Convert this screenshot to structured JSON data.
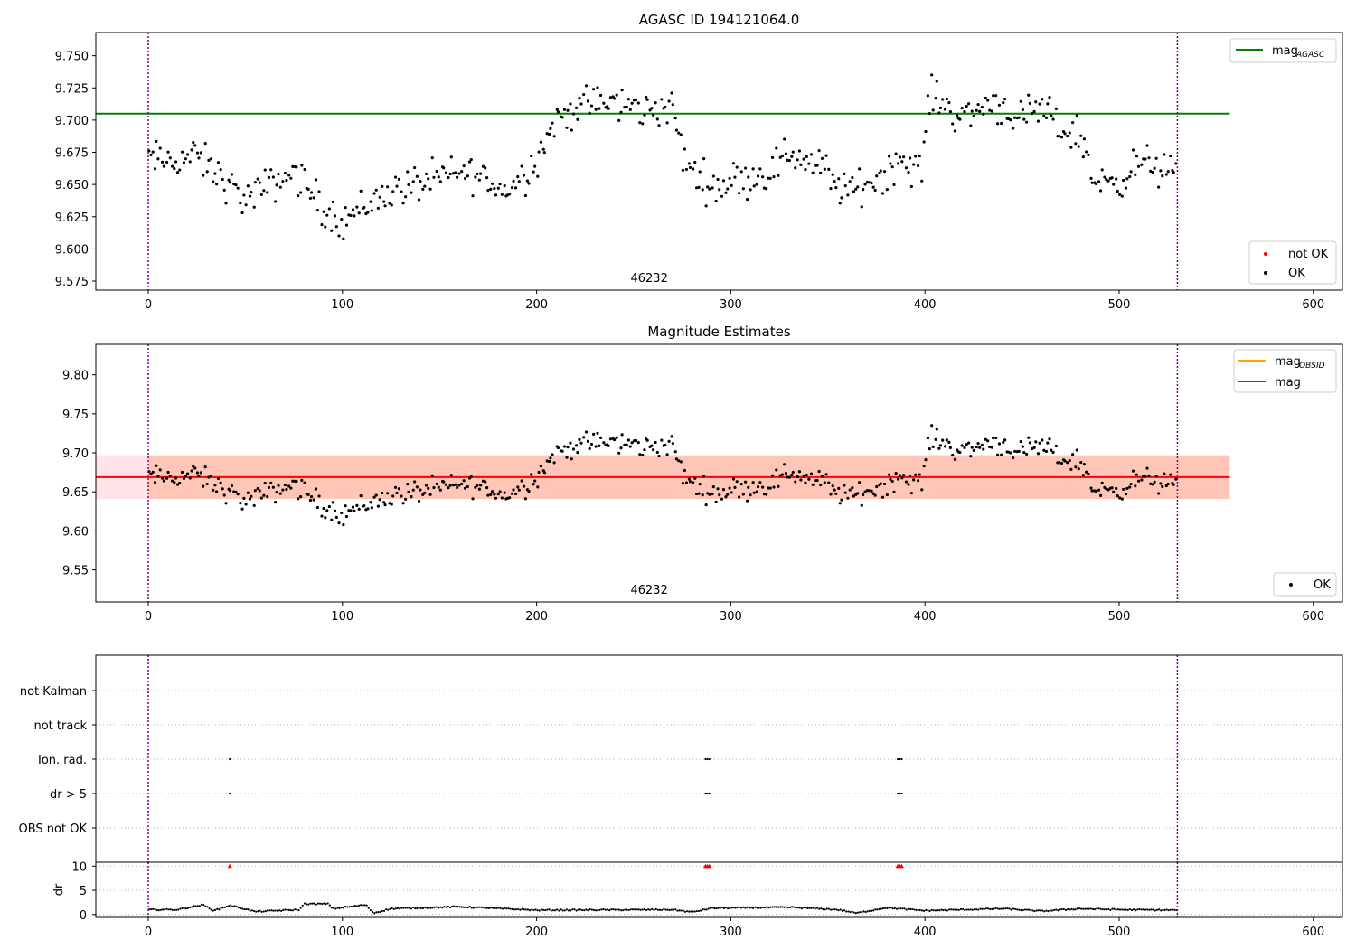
{
  "colors": {
    "ok": "#000000",
    "not_ok": "#ff0000",
    "mag_agasc": "#008000",
    "mag_obsid": "#ffa500",
    "mag": "#ff0000",
    "obs_boundary": "#800080",
    "band_outer": "#ffc0cb",
    "band_inner": "#ffa07a",
    "grid": "#b0b0b0"
  },
  "chart_data": [
    {
      "type": "scatter",
      "title": "AGASC ID 194121064.0",
      "xlim": [
        -27,
        615
      ],
      "ylim": [
        9.568,
        9.768
      ],
      "xticks": [
        "0",
        "100",
        "200",
        "300",
        "400",
        "500",
        "600"
      ],
      "yticks": [
        "9.575",
        "9.600",
        "9.625",
        "9.650",
        "9.675",
        "9.700",
        "9.725",
        "9.750"
      ],
      "obs_label": "46232",
      "obs_boundaries": [
        0,
        530
      ],
      "mag_agasc": 9.705,
      "legend_lines": [
        {
          "label": "mag",
          "subscript": "AGASC"
        }
      ],
      "legend_points": [
        {
          "label": "not OK"
        },
        {
          "label": "OK"
        }
      ],
      "series": [
        {
          "name": "OK",
          "trend": [
            [
              0,
              9.67
            ],
            [
              10,
              9.668
            ],
            [
              25,
              9.672
            ],
            [
              50,
              9.638
            ],
            [
              75,
              9.66
            ],
            [
              90,
              9.632
            ],
            [
              100,
              9.622
            ],
            [
              110,
              9.632
            ],
            [
              125,
              9.645
            ],
            [
              150,
              9.655
            ],
            [
              165,
              9.66
            ],
            [
              185,
              9.645
            ],
            [
              198,
              9.665
            ],
            [
              210,
              9.7
            ],
            [
              225,
              9.713
            ],
            [
              240,
              9.713
            ],
            [
              255,
              9.708
            ],
            [
              270,
              9.71
            ],
            [
              276,
              9.668
            ],
            [
              290,
              9.648
            ],
            [
              305,
              9.655
            ],
            [
              318,
              9.658
            ],
            [
              330,
              9.675
            ],
            [
              345,
              9.665
            ],
            [
              360,
              9.643
            ],
            [
              375,
              9.655
            ],
            [
              388,
              9.67
            ],
            [
              398,
              9.658
            ],
            [
              402,
              9.72
            ],
            [
              420,
              9.702
            ],
            [
              435,
              9.715
            ],
            [
              450,
              9.7
            ],
            [
              460,
              9.708
            ],
            [
              470,
              9.693
            ],
            [
              480,
              9.688
            ],
            [
              488,
              9.65
            ],
            [
              500,
              9.655
            ],
            [
              515,
              9.668
            ],
            [
              530,
              9.655
            ]
          ],
          "n_points": 530,
          "jitter": 0.011
        }
      ]
    },
    {
      "type": "scatter",
      "title": "Magnitude Estimates",
      "xlim": [
        -27,
        615
      ],
      "ylim": [
        9.509,
        9.839
      ],
      "xticks": [
        "0",
        "100",
        "200",
        "300",
        "400",
        "500",
        "600"
      ],
      "yticks": [
        "9.55",
        "9.60",
        "9.65",
        "9.70",
        "9.75",
        "9.80"
      ],
      "obs_label": "46232",
      "obs_boundaries": [
        0,
        530
      ],
      "mag": 9.669,
      "mag_band": [
        9.641,
        9.697
      ],
      "mag_obsid_band": [
        9.641,
        9.697
      ],
      "band_extent": [
        0,
        557
      ],
      "legend_lines": [
        {
          "label": "mag",
          "subscript": "OBSID"
        },
        {
          "label": "mag",
          "subscript": ""
        }
      ],
      "legend_points": [
        {
          "label": "OK"
        }
      ],
      "series": [
        {
          "name": "OK",
          "same_as_panel": 0
        }
      ]
    },
    {
      "type": "scatter",
      "title": "",
      "xlim": [
        -27,
        615
      ],
      "xticks": [
        "0",
        "100",
        "200",
        "300",
        "400",
        "500",
        "600"
      ],
      "obs_boundaries": [
        0,
        530
      ],
      "flag_categories": [
        "not Kalman",
        "not track",
        "Ion. rad.",
        "dr > 5",
        "OBS not OK"
      ],
      "flags": {
        "not Kalman": [],
        "not track": [],
        "Ion. rad.": [
          42,
          287,
          288,
          289,
          386,
          387,
          388
        ],
        "dr > 5": [
          42,
          287,
          288,
          289,
          386,
          387,
          388
        ],
        "OBS not OK": []
      },
      "dr": {
        "ylabel": "dr",
        "ylim": [
          -0.6,
          10.8
        ],
        "yticks": [
          "0",
          "5",
          "10"
        ],
        "not_ok_x": [
          42,
          287,
          288,
          289,
          386,
          387,
          388
        ],
        "not_ok_value": 10,
        "trend": [
          [
            0,
            1.0
          ],
          [
            15,
            1.0
          ],
          [
            28,
            2.0
          ],
          [
            34,
            0.8
          ],
          [
            42,
            1.9
          ],
          [
            55,
            0.6
          ],
          [
            78,
            1.0
          ],
          [
            80,
            2.2
          ],
          [
            93,
            2.2
          ],
          [
            95,
            1.2
          ],
          [
            112,
            2.0
          ],
          [
            116,
            0.3
          ],
          [
            125,
            1.2
          ],
          [
            160,
            1.6
          ],
          [
            200,
            0.9
          ],
          [
            270,
            1.0
          ],
          [
            280,
            0.5
          ],
          [
            290,
            1.3
          ],
          [
            330,
            1.5
          ],
          [
            355,
            1.0
          ],
          [
            365,
            0.3
          ],
          [
            380,
            1.4
          ],
          [
            400,
            0.8
          ],
          [
            440,
            1.2
          ],
          [
            460,
            0.7
          ],
          [
            480,
            1.2
          ],
          [
            500,
            1.0
          ],
          [
            530,
            0.9
          ]
        ]
      }
    }
  ]
}
